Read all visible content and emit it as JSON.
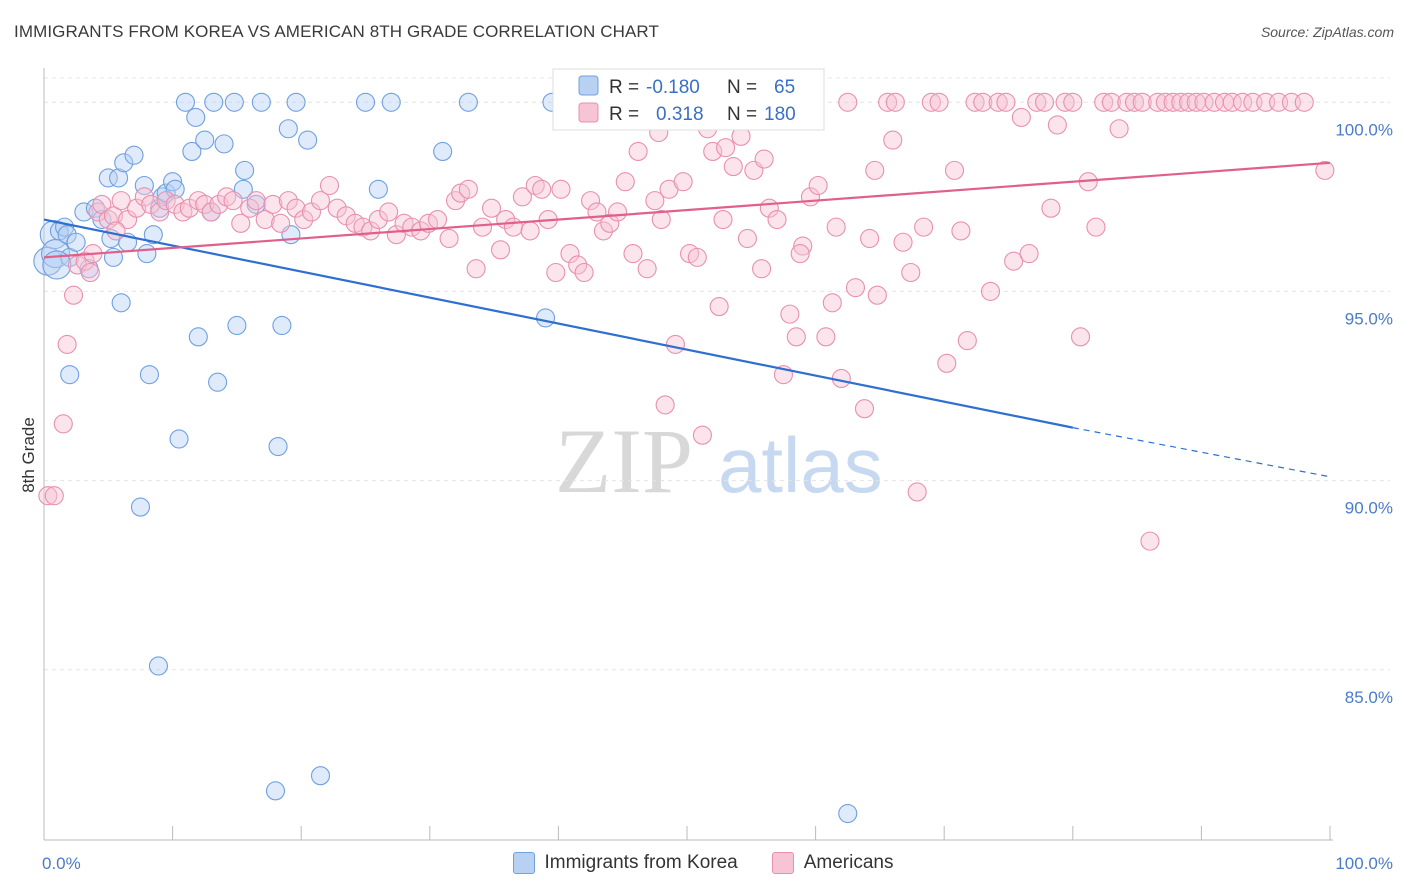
{
  "title": "IMMIGRANTS FROM KOREA VS AMERICAN 8TH GRADE CORRELATION CHART",
  "source": "Source: ZipAtlas.com",
  "watermark": {
    "zip": "ZIP",
    "atlas": "atlas"
  },
  "chart_data": {
    "type": "scatter",
    "title": "IMMIGRANTS FROM KOREA VS AMERICAN 8TH GRADE CORRELATION CHART",
    "xlabel": "",
    "ylabel": "8th Grade",
    "xlim": [
      0,
      100
    ],
    "ylim": [
      80.5,
      100.8
    ],
    "x_tick_labels": [
      "0.0%",
      "100.0%"
    ],
    "y_ticks": [
      85,
      90,
      95,
      100
    ],
    "y_tick_labels": [
      "85.0%",
      "90.0%",
      "95.0%",
      "100.0%"
    ],
    "grid": true,
    "legend_position": "top-center",
    "legend": {
      "r_label": "R =",
      "n_label": "N =",
      "entries": [
        {
          "r": "-0.180",
          "n": "65"
        },
        {
          "r": "0.318",
          "n": "180"
        }
      ]
    },
    "series": [
      {
        "name": "Immigrants from Korea",
        "color": "#6fa0e0",
        "fill": "#b8d1f3",
        "trend": {
          "x0": 0,
          "y0": 96.9,
          "x1": 80,
          "y1": 91.4,
          "dash_to_x": 100,
          "dash_to_y": 90.1,
          "color": "#2f6fd0"
        },
        "points": [
          [
            0.3,
            95.8
          ],
          [
            0.8,
            96.5
          ],
          [
            0.9,
            96.0
          ],
          [
            1.2,
            96.6
          ],
          [
            1.6,
            96.7
          ],
          [
            1.8,
            96.5
          ],
          [
            2.0,
            95.9
          ],
          [
            2.5,
            96.3
          ],
          [
            3.1,
            97.1
          ],
          [
            3.5,
            95.6
          ],
          [
            4.0,
            97.2
          ],
          [
            4.5,
            96.9
          ],
          [
            5.0,
            98.0
          ],
          [
            5.2,
            96.4
          ],
          [
            5.4,
            95.9
          ],
          [
            5.8,
            98.0
          ],
          [
            6.0,
            94.7
          ],
          [
            6.2,
            98.4
          ],
          [
            6.5,
            96.3
          ],
          [
            7.0,
            98.6
          ],
          [
            7.8,
            97.8
          ],
          [
            8.0,
            96.0
          ],
          [
            8.5,
            96.5
          ],
          [
            9.0,
            97.2
          ],
          [
            9.2,
            97.5
          ],
          [
            9.5,
            97.6
          ],
          [
            10.0,
            97.9
          ],
          [
            10.2,
            97.7
          ],
          [
            10.5,
            91.1
          ],
          [
            11.0,
            100.0
          ],
          [
            11.5,
            98.7
          ],
          [
            11.8,
            99.6
          ],
          [
            12.0,
            93.8
          ],
          [
            12.5,
            99.0
          ],
          [
            13.0,
            97.1
          ],
          [
            13.2,
            100.0
          ],
          [
            13.5,
            92.6
          ],
          [
            14.0,
            98.9
          ],
          [
            14.8,
            100.0
          ],
          [
            15.0,
            94.1
          ],
          [
            15.5,
            97.7
          ],
          [
            15.6,
            98.2
          ],
          [
            16.5,
            97.3
          ],
          [
            16.9,
            100.0
          ],
          [
            18.0,
            81.8
          ],
          [
            18.2,
            90.9
          ],
          [
            18.5,
            94.1
          ],
          [
            19.0,
            99.3
          ],
          [
            19.2,
            96.5
          ],
          [
            19.6,
            100.0
          ],
          [
            20.5,
            99.0
          ],
          [
            21.5,
            82.2
          ],
          [
            25.0,
            100.0
          ],
          [
            26.0,
            97.7
          ],
          [
            27.0,
            100.0
          ],
          [
            31.0,
            98.7
          ],
          [
            33.0,
            100.0
          ],
          [
            39.0,
            94.3
          ],
          [
            39.5,
            100.0
          ],
          [
            62.5,
            81.2
          ],
          [
            2.0,
            92.8
          ],
          [
            8.2,
            92.8
          ],
          [
            7.5,
            89.3
          ],
          [
            8.9,
            85.1
          ],
          [
            1.0,
            95.7
          ]
        ]
      },
      {
        "name": "Americans",
        "color": "#e890ae",
        "fill": "#f6c4d4",
        "trend": {
          "x0": 0,
          "y0": 95.9,
          "x1": 100,
          "y1": 98.4,
          "color": "#e0608a"
        },
        "points": [
          [
            0.3,
            89.6
          ],
          [
            0.8,
            89.6
          ],
          [
            1.5,
            91.5
          ],
          [
            1.8,
            93.6
          ],
          [
            2.3,
            94.9
          ],
          [
            2.6,
            95.7
          ],
          [
            3.2,
            95.8
          ],
          [
            3.6,
            95.5
          ],
          [
            4.2,
            97.1
          ],
          [
            4.5,
            97.3
          ],
          [
            5.0,
            96.9
          ],
          [
            5.4,
            97.0
          ],
          [
            6.0,
            97.4
          ],
          [
            6.5,
            96.9
          ],
          [
            7.2,
            97.2
          ],
          [
            7.8,
            97.5
          ],
          [
            8.3,
            97.3
          ],
          [
            9.0,
            97.1
          ],
          [
            9.5,
            97.4
          ],
          [
            10.2,
            97.3
          ],
          [
            10.8,
            97.1
          ],
          [
            11.3,
            97.2
          ],
          [
            12.0,
            97.4
          ],
          [
            12.5,
            97.3
          ],
          [
            13.0,
            97.1
          ],
          [
            13.6,
            97.3
          ],
          [
            14.2,
            97.5
          ],
          [
            14.7,
            97.4
          ],
          [
            15.3,
            96.8
          ],
          [
            16.0,
            97.2
          ],
          [
            16.5,
            97.4
          ],
          [
            17.2,
            96.9
          ],
          [
            17.8,
            97.3
          ],
          [
            18.4,
            96.8
          ],
          [
            19.0,
            97.4
          ],
          [
            19.6,
            97.2
          ],
          [
            20.2,
            96.9
          ],
          [
            20.8,
            97.1
          ],
          [
            21.5,
            97.4
          ],
          [
            22.2,
            97.8
          ],
          [
            22.8,
            97.2
          ],
          [
            23.5,
            97.0
          ],
          [
            24.2,
            96.8
          ],
          [
            24.8,
            96.7
          ],
          [
            25.4,
            96.6
          ],
          [
            26.0,
            96.9
          ],
          [
            26.8,
            97.1
          ],
          [
            27.4,
            96.5
          ],
          [
            28.0,
            96.8
          ],
          [
            28.6,
            96.7
          ],
          [
            29.3,
            96.6
          ],
          [
            29.9,
            96.8
          ],
          [
            30.6,
            96.9
          ],
          [
            31.5,
            96.4
          ],
          [
            32.0,
            97.4
          ],
          [
            32.4,
            97.6
          ],
          [
            33.0,
            97.7
          ],
          [
            33.6,
            95.6
          ],
          [
            34.1,
            96.7
          ],
          [
            34.8,
            97.2
          ],
          [
            35.5,
            96.1
          ],
          [
            35.9,
            96.9
          ],
          [
            36.5,
            96.7
          ],
          [
            37.2,
            97.5
          ],
          [
            37.8,
            96.6
          ],
          [
            38.2,
            97.8
          ],
          [
            38.7,
            97.7
          ],
          [
            39.2,
            96.9
          ],
          [
            39.8,
            95.5
          ],
          [
            40.2,
            97.7
          ],
          [
            40.9,
            96.0
          ],
          [
            41.5,
            95.7
          ],
          [
            42.0,
            95.5
          ],
          [
            42.5,
            97.4
          ],
          [
            43.0,
            97.1
          ],
          [
            43.5,
            96.6
          ],
          [
            44.0,
            96.8
          ],
          [
            44.6,
            97.1
          ],
          [
            45.2,
            97.9
          ],
          [
            45.8,
            96.0
          ],
          [
            46.2,
            98.7
          ],
          [
            46.9,
            95.6
          ],
          [
            47.5,
            97.4
          ],
          [
            48.0,
            96.9
          ],
          [
            48.6,
            97.7
          ],
          [
            49.1,
            93.6
          ],
          [
            49.7,
            97.9
          ],
          [
            50.2,
            96.0
          ],
          [
            50.8,
            95.9
          ],
          [
            51.2,
            91.2
          ],
          [
            51.6,
            99.3
          ],
          [
            52.0,
            98.7
          ],
          [
            52.5,
            94.6
          ],
          [
            53.0,
            98.8
          ],
          [
            53.6,
            98.3
          ],
          [
            54.2,
            99.1
          ],
          [
            54.7,
            96.4
          ],
          [
            55.2,
            98.2
          ],
          [
            55.8,
            95.6
          ],
          [
            56.4,
            97.2
          ],
          [
            57.0,
            96.9
          ],
          [
            57.5,
            92.8
          ],
          [
            58.0,
            94.4
          ],
          [
            58.5,
            93.8
          ],
          [
            59.0,
            96.2
          ],
          [
            59.6,
            97.5
          ],
          [
            60.2,
            97.8
          ],
          [
            60.8,
            93.8
          ],
          [
            61.3,
            94.7
          ],
          [
            62.0,
            92.7
          ],
          [
            62.5,
            100.0
          ],
          [
            63.1,
            95.1
          ],
          [
            63.8,
            91.9
          ],
          [
            64.2,
            96.4
          ],
          [
            64.8,
            94.9
          ],
          [
            65.6,
            100.0
          ],
          [
            66.2,
            100.0
          ],
          [
            66.8,
            96.3
          ],
          [
            67.4,
            95.5
          ],
          [
            67.9,
            89.7
          ],
          [
            68.4,
            96.7
          ],
          [
            69.0,
            100.0
          ],
          [
            69.6,
            100.0
          ],
          [
            70.2,
            93.1
          ],
          [
            70.8,
            98.2
          ],
          [
            71.3,
            96.6
          ],
          [
            71.8,
            93.7
          ],
          [
            72.4,
            100.0
          ],
          [
            73.0,
            100.0
          ],
          [
            73.6,
            95.0
          ],
          [
            74.2,
            100.0
          ],
          [
            74.8,
            100.0
          ],
          [
            75.4,
            95.8
          ],
          [
            76.0,
            99.6
          ],
          [
            76.6,
            96.0
          ],
          [
            77.2,
            100.0
          ],
          [
            77.8,
            100.0
          ],
          [
            78.3,
            97.2
          ],
          [
            78.8,
            99.4
          ],
          [
            79.4,
            100.0
          ],
          [
            80.0,
            100.0
          ],
          [
            80.6,
            93.8
          ],
          [
            81.2,
            97.9
          ],
          [
            81.8,
            96.7
          ],
          [
            82.4,
            100.0
          ],
          [
            83.0,
            100.0
          ],
          [
            83.6,
            99.3
          ],
          [
            84.2,
            100.0
          ],
          [
            84.8,
            100.0
          ],
          [
            85.4,
            100.0
          ],
          [
            86.0,
            88.4
          ],
          [
            86.6,
            100.0
          ],
          [
            87.2,
            100.0
          ],
          [
            87.8,
            100.0
          ],
          [
            88.4,
            100.0
          ],
          [
            89.0,
            100.0
          ],
          [
            89.6,
            100.0
          ],
          [
            90.2,
            100.0
          ],
          [
            91.0,
            100.0
          ],
          [
            91.8,
            100.0
          ],
          [
            92.4,
            100.0
          ],
          [
            93.2,
            100.0
          ],
          [
            94.0,
            100.0
          ],
          [
            95.0,
            100.0
          ],
          [
            96.0,
            100.0
          ],
          [
            97.0,
            100.0
          ],
          [
            98.0,
            100.0
          ],
          [
            99.6,
            98.2
          ],
          [
            3.8,
            96.0
          ],
          [
            5.6,
            96.6
          ],
          [
            48.3,
            92.0
          ],
          [
            52.8,
            96.9
          ],
          [
            56.0,
            98.5
          ],
          [
            58.8,
            96.0
          ],
          [
            61.6,
            96.7
          ],
          [
            66.0,
            99.0
          ],
          [
            64.6,
            98.2
          ],
          [
            54.6,
            100.0
          ],
          [
            45.6,
            99.6
          ],
          [
            47.8,
            99.2
          ]
        ]
      }
    ]
  }
}
